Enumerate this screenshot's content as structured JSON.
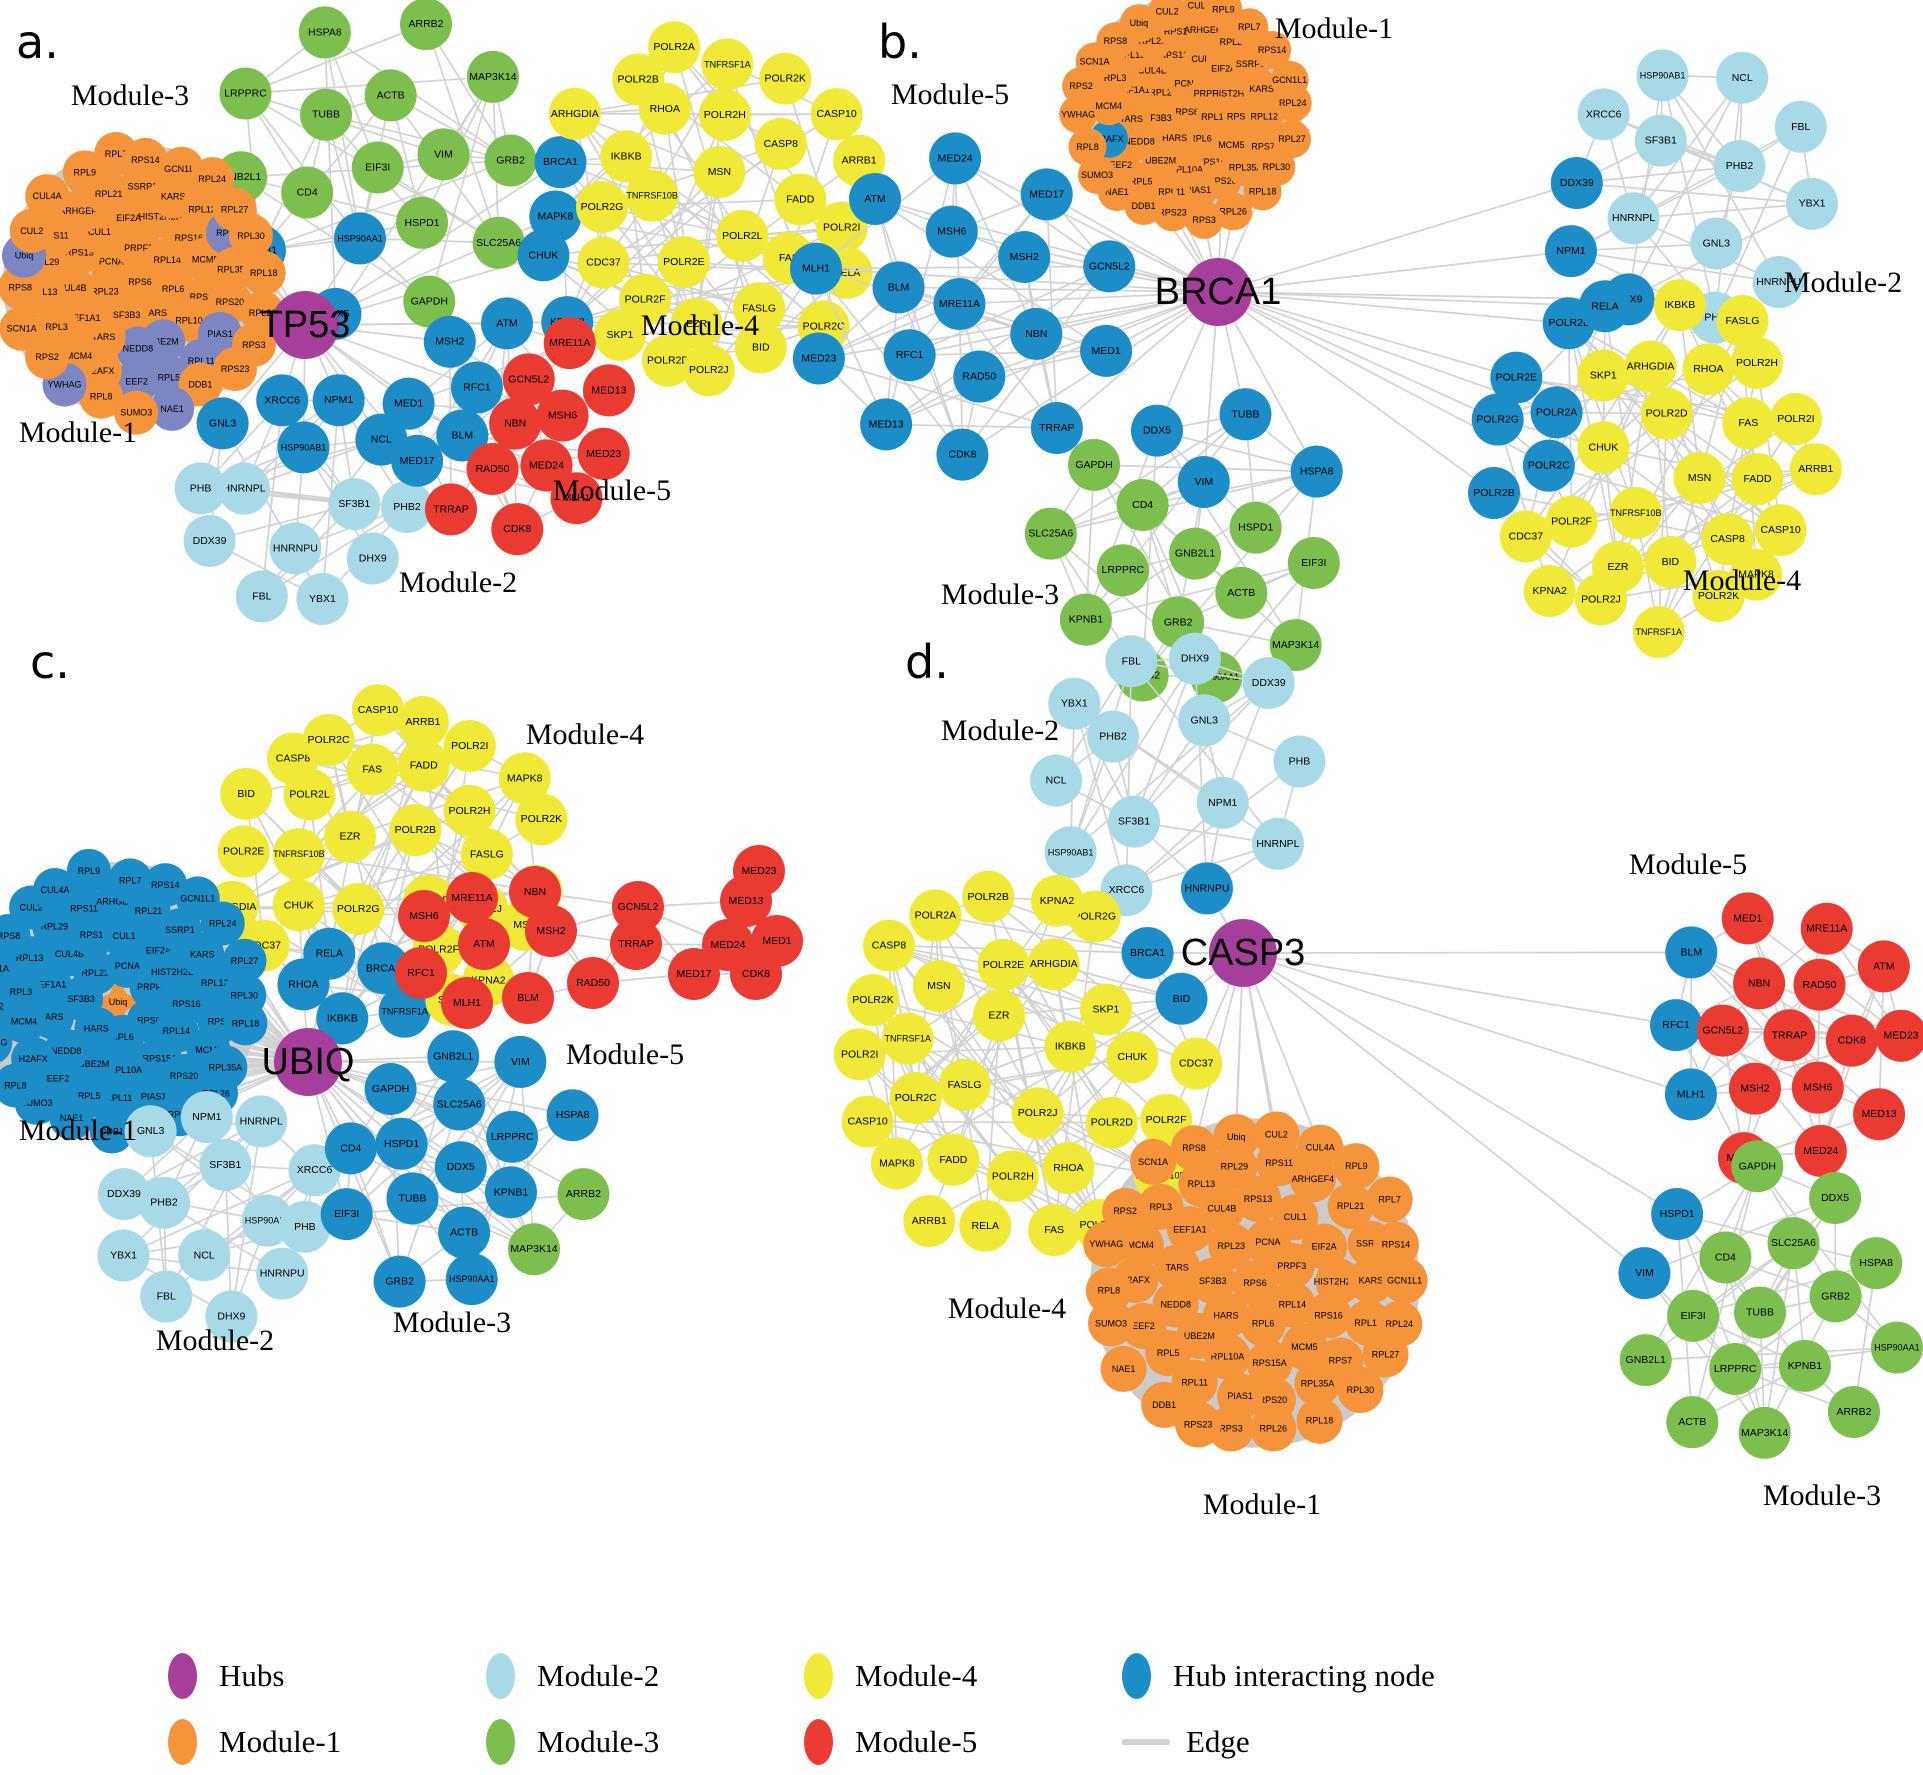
{
  "colors": {
    "hub": "#a53f9b",
    "module1": "#f5943a",
    "module2": "#a8d9e7",
    "module3": "#7dbf4e",
    "module4": "#f1e937",
    "module5": "#e93b32",
    "interacting": "#1d8dc8",
    "module1_alt": "#7b86c2",
    "edge": "#d2d2d2",
    "label": "#000000"
  },
  "legend": {
    "items": [
      {
        "label": "Hubs",
        "color": "hub",
        "shape": "ellipse"
      },
      {
        "label": "Module-2",
        "color": "module2",
        "shape": "ellipse"
      },
      {
        "label": "Module-4",
        "color": "module4",
        "shape": "ellipse"
      },
      {
        "label": "Hub interacting node",
        "color": "interacting",
        "shape": "ellipse"
      },
      {
        "label": "Module-1",
        "color": "module1",
        "shape": "ellipse"
      },
      {
        "label": "Module-3",
        "color": "module3",
        "shape": "ellipse"
      },
      {
        "label": "Module-5",
        "color": "module5",
        "shape": "ellipse"
      },
      {
        "label": "Edge",
        "color": "edge",
        "shape": "line"
      }
    ]
  },
  "modules": {
    "module1": [
      "RPS6",
      "RPL6",
      "HARS",
      "SF3B3",
      "RPL23",
      "PCNA",
      "PRPF3",
      "RPL14",
      "RPS15A",
      "RPL10A",
      "UBE2M",
      "NEDD8",
      "TARS",
      "EEF1A1",
      "CUL4B",
      "RPS13",
      "CUL1",
      "EIF2A",
      "HIST2H2BE",
      "RPS16",
      "MCM5",
      "RPS20",
      "PIAS1",
      "RPL11",
      "RPL5",
      "EEF2",
      "H2AFX",
      "MCM4",
      "RPL3",
      "RPL13",
      "RPL29",
      "RPS11",
      "ARHGEF4",
      "RPL21",
      "SSRP1",
      "KARS",
      "RPL12",
      "RPS7",
      "RPL35A",
      "RPL26",
      "RPS3",
      "RPS23",
      "DDB1",
      "NAE1",
      "SUMO3",
      "RPL8",
      "YWHAG",
      "RPS2",
      "SCN1A",
      "RPS8",
      "Ubiq",
      "CUL2",
      "CUL4A",
      "RPL9",
      "RPL7",
      "RPS14",
      "GCN1L1",
      "RPL24",
      "RPL27",
      "RPL30",
      "RPL18"
    ],
    "module2": [
      "HNRNPL",
      "XRCC6",
      "NPM1",
      "SF3B1",
      "HSP90AB1",
      "PHB",
      "GNL3",
      "PHB2",
      "HNRNPU",
      "NCL",
      "DDX39",
      "DHX9",
      "YBX1",
      "FBL"
    ],
    "module3": [
      "GAPDH",
      "CD4",
      "HSPD1",
      "GNB2L1",
      "EIF3I",
      "SLC25A6",
      "TUBB",
      "DDX5",
      "VIM",
      "LRPPRC",
      "ACTB",
      "GRB2",
      "KPNB1",
      "HSPA8",
      "MAP3K14",
      "HSP90AA1",
      "ARRB2"
    ],
    "module4": [
      "CDC37",
      "SKP1",
      "CHUK",
      "POLR2G",
      "POLR2F",
      "ARHGDIA",
      "KPNA2",
      "IKBKB",
      "POLR2D",
      "TNFRSF10B",
      "POLR2E",
      "EZR",
      "POLR2J",
      "POLR2B",
      "RHOA",
      "MSN",
      "POLR2L",
      "FASLG",
      "BID",
      "POLR2A",
      "POLR2H",
      "FAS",
      "TNFRSF1A",
      "CASP8",
      "FADD",
      "POLR2C",
      "POLR2K",
      "RELA",
      "POLR2I",
      "MAPK8",
      "CASP10",
      "ARRB1",
      "BRCA1"
    ],
    "module5": [
      "GCN5L2",
      "MED1",
      "NBN",
      "MSH2",
      "MED17",
      "TRRAP",
      "RAD50",
      "MRE11A",
      "MSH6",
      "MED24",
      "CDK8",
      "RFC1",
      "BLM",
      "ATM",
      "MED13",
      "MLH1",
      "MED23"
    ]
  },
  "panels": [
    {
      "id": "a",
      "letter": "a.",
      "hub": "TP53",
      "clusters": [
        {
          "key": "m3",
          "module": "module3",
          "label": "Module-3",
          "interacting": [
            "DDX5",
            "KPNB1",
            "HSP90AA1"
          ]
        },
        {
          "key": "m4",
          "module": "module4",
          "label": "Module-4",
          "interacting": [
            "KPNA2",
            "CHUK",
            "MAPK8",
            "BRCA1"
          ]
        },
        {
          "key": "m1",
          "module": "module1",
          "label": "Module-1",
          "interacting": [],
          "alt": [
            "RPL11",
            "RPL5",
            "EEF2",
            "UBE2M",
            "NEDD8",
            "PIAS1",
            "RPS7",
            "NAE1",
            "Ubiq",
            "YWHAG"
          ]
        },
        {
          "key": "m2",
          "module": "module2",
          "label": "Module-2",
          "interacting": [
            "XRCC6",
            "NPM1",
            "HSP90AB1",
            "GNL3",
            "NCL"
          ]
        },
        {
          "key": "m5",
          "module": "module5",
          "label": "Module-5",
          "interacting": [
            "MSH2",
            "MED17",
            "MED1",
            "RFC1",
            "BLM",
            "ATM"
          ]
        }
      ]
    },
    {
      "id": "b",
      "letter": "b.",
      "hub": "BRCA1",
      "clusters": [
        {
          "key": "m1",
          "module": "module1",
          "label": "Module-1",
          "interacting": [
            "H2AFX"
          ]
        },
        {
          "key": "m5",
          "module": "module5",
          "label": "Module-5",
          "interacting_all": true
        },
        {
          "key": "m2",
          "module": "module2",
          "label": "Module-2",
          "interacting": [
            "NPM1",
            "DHX9",
            "DDX39"
          ]
        },
        {
          "key": "m4",
          "module": "module4",
          "label": "Module-4",
          "exclude": [
            "BRCA1"
          ],
          "interacting": [
            "POLR2A",
            "POLR2C",
            "POLR2B",
            "POLR2L",
            "POLR2E",
            "RELA",
            "POLR2G"
          ]
        },
        {
          "key": "m3",
          "module": "module3",
          "label": "Module-3",
          "interacting": [
            "TUBB",
            "HSPA8",
            "VIM",
            "DDX5"
          ]
        }
      ]
    },
    {
      "id": "c",
      "letter": "c.",
      "hub": "UBIQ",
      "clusters": [
        {
          "key": "m4",
          "module": "module4",
          "label": "Module-4",
          "interacting": [
            "BRCA1",
            "IKBKB",
            "RELA",
            "TNFRSF1A",
            "RHOA"
          ]
        },
        {
          "key": "m1",
          "module": "module1",
          "label": "Module-1",
          "interacting_all": true,
          "star": "Ubiq"
        },
        {
          "key": "m5",
          "module": "module5",
          "label": "Module-5",
          "interacting": []
        },
        {
          "key": "m2",
          "module": "module2",
          "label": "Module-2",
          "interacting": []
        },
        {
          "key": "m3",
          "module": "module3",
          "label": "Module-3",
          "interacting_all_except": [
            "ARRB2",
            "MAP3K14"
          ]
        }
      ]
    },
    {
      "id": "d",
      "letter": "d.",
      "hub": "CASP3",
      "clusters": [
        {
          "key": "m2",
          "module": "module2",
          "label": "Module-2",
          "interacting": [
            "HNRNPU"
          ]
        },
        {
          "key": "m5",
          "module": "module5",
          "label": "Module-5",
          "interacting": [
            "RFC1",
            "MLH1",
            "BLM"
          ]
        },
        {
          "key": "m4",
          "module": "module4",
          "label": "Module-4",
          "interacting": [
            "BRCA1",
            "BID"
          ]
        },
        {
          "key": "m1",
          "module": "module1",
          "label": "Module-1",
          "interacting": []
        },
        {
          "key": "m3",
          "module": "module3",
          "label": "Module-3",
          "interacting": [
            "VIM",
            "HSPD1"
          ]
        }
      ]
    }
  ]
}
